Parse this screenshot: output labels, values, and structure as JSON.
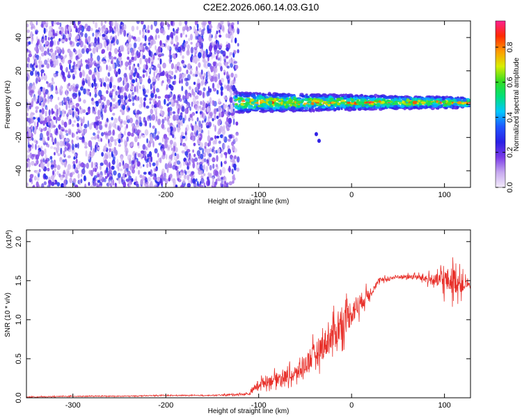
{
  "title": "C2E2.2026.060.14.03.G10",
  "colors": {
    "snr_line": "#e8302a",
    "frame": "#000000",
    "colorbar_stops": [
      "#f3ecfb",
      "#c6a8ef",
      "#7a3ae8",
      "#2a20e6",
      "#1f55ff",
      "#00c8ff",
      "#00e07a",
      "#33dd22",
      "#d8ee00",
      "#ff9a00",
      "#ff2a00",
      "#ff2090"
    ]
  },
  "chart_data": [
    {
      "type": "heatmap",
      "title": "",
      "xlabel": "Height of straight line (km)",
      "ylabel": "Frequency (Hz)",
      "xlim": [
        -350,
        128
      ],
      "ylim": [
        -50,
        50
      ],
      "xticks": [
        -300,
        -200,
        -100,
        0,
        100
      ],
      "yticks": [
        -40,
        -20,
        0,
        20,
        40
      ],
      "colorbar": {
        "label": "Normalized spectral amplitude",
        "range": [
          0.0,
          0.95
        ],
        "ticks": [
          0.0,
          0.2,
          0.4,
          0.6,
          0.8
        ]
      },
      "regions": [
        {
          "description": "broadband noise",
          "x_range": [
            -350,
            -122
          ],
          "y_range": [
            -50,
            50
          ],
          "amplitude": [
            0.05,
            0.3
          ]
        },
        {
          "description": "signal band",
          "x_range": [
            -125,
            128
          ],
          "y_center": 1,
          "y_halfwidth_start": 6,
          "y_halfwidth_end": 3,
          "amplitude": [
            0.3,
            0.95
          ]
        },
        {
          "description": "faint spur",
          "points": [
            [
              -38,
              -18
            ],
            [
              -35,
              -22
            ]
          ],
          "amplitude": 0.25
        }
      ]
    },
    {
      "type": "line",
      "title": "",
      "xlabel": "Height of straight line (km)",
      "ylabel": "SNR (10 * v/v)",
      "yscale_label": "(x10^4)",
      "xlim": [
        -350,
        128
      ],
      "ylim": [
        0,
        2.15
      ],
      "xticks": [
        -300,
        -200,
        -100,
        0,
        100
      ],
      "yticks": [
        0.0,
        0.5,
        1.0,
        1.5,
        2.0
      ],
      "series": [
        {
          "x": [
            -350,
            -300,
            -250,
            -200,
            -150,
            -110,
            -100,
            -80,
            -60,
            -40,
            -20,
            0,
            20,
            30,
            50,
            70,
            90,
            100,
            110,
            120,
            128
          ],
          "y": [
            0.01,
            0.02,
            0.02,
            0.03,
            0.03,
            0.05,
            0.18,
            0.25,
            0.3,
            0.55,
            0.8,
            1.1,
            1.35,
            1.5,
            1.55,
            1.55,
            1.5,
            1.5,
            1.5,
            1.45,
            1.45
          ],
          "noise_amplitude": [
            0.01,
            0.01,
            0.01,
            0.01,
            0.01,
            0.03,
            0.12,
            0.15,
            0.2,
            0.3,
            0.4,
            0.35,
            0.12,
            0.06,
            0.05,
            0.06,
            0.15,
            0.3,
            0.35,
            0.2,
            0.05
          ]
        }
      ]
    }
  ]
}
